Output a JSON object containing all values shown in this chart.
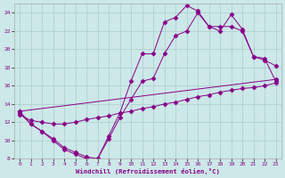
{
  "xlabel": "Windchill (Refroidissement éolien,°C)",
  "bg_color": "#cce8e8",
  "grid_color": "#aacccc",
  "line_color": "#880088",
  "xlim": [
    -0.5,
    23.5
  ],
  "ylim": [
    8,
    25
  ],
  "yticks": [
    8,
    10,
    12,
    14,
    16,
    18,
    20,
    22,
    24
  ],
  "xticks": [
    0,
    1,
    2,
    3,
    4,
    5,
    6,
    7,
    8,
    9,
    10,
    11,
    12,
    13,
    14,
    15,
    16,
    17,
    18,
    19,
    20,
    21,
    22,
    23
  ],
  "line1_x": [
    0,
    1,
    2,
    3,
    4,
    5,
    6,
    7,
    8,
    9,
    10,
    11,
    12,
    13,
    14,
    15,
    16,
    17,
    18,
    19,
    20,
    21,
    22,
    23
  ],
  "line1_y": [
    13.0,
    11.8,
    11.0,
    10.2,
    9.2,
    8.7,
    8.2,
    8.0,
    10.5,
    13.0,
    16.5,
    19.5,
    19.5,
    23.0,
    23.5,
    24.8,
    24.2,
    22.5,
    22.5,
    22.5,
    22.0,
    19.2,
    18.8,
    18.2
  ],
  "line2_x": [
    0,
    1,
    2,
    3,
    4,
    5,
    6,
    7,
    8,
    9,
    10,
    11,
    12,
    13,
    14,
    15,
    16,
    17,
    18,
    19,
    20,
    21,
    22,
    23
  ],
  "line2_y": [
    13.2,
    11.8,
    11.0,
    10.0,
    9.0,
    8.5,
    8.0,
    8.0,
    10.2,
    12.5,
    14.5,
    16.5,
    16.8,
    19.5,
    21.5,
    22.0,
    24.0,
    22.5,
    22.0,
    23.8,
    22.2,
    19.2,
    19.0,
    16.5
  ],
  "line3_x": [
    0,
    1,
    2,
    3,
    4,
    5,
    6,
    7,
    8,
    9,
    10,
    11,
    12,
    13,
    14,
    15,
    16,
    17,
    18,
    19,
    20,
    21,
    22,
    23
  ],
  "line3_y": [
    12.8,
    12.2,
    12.0,
    11.8,
    11.8,
    12.0,
    12.3,
    12.5,
    12.7,
    13.0,
    13.2,
    13.5,
    13.7,
    14.0,
    14.2,
    14.5,
    14.8,
    15.0,
    15.3,
    15.5,
    15.7,
    15.8,
    16.0,
    16.3
  ],
  "line4_x": [
    0,
    23
  ],
  "line4_y": [
    13.2,
    16.7
  ]
}
